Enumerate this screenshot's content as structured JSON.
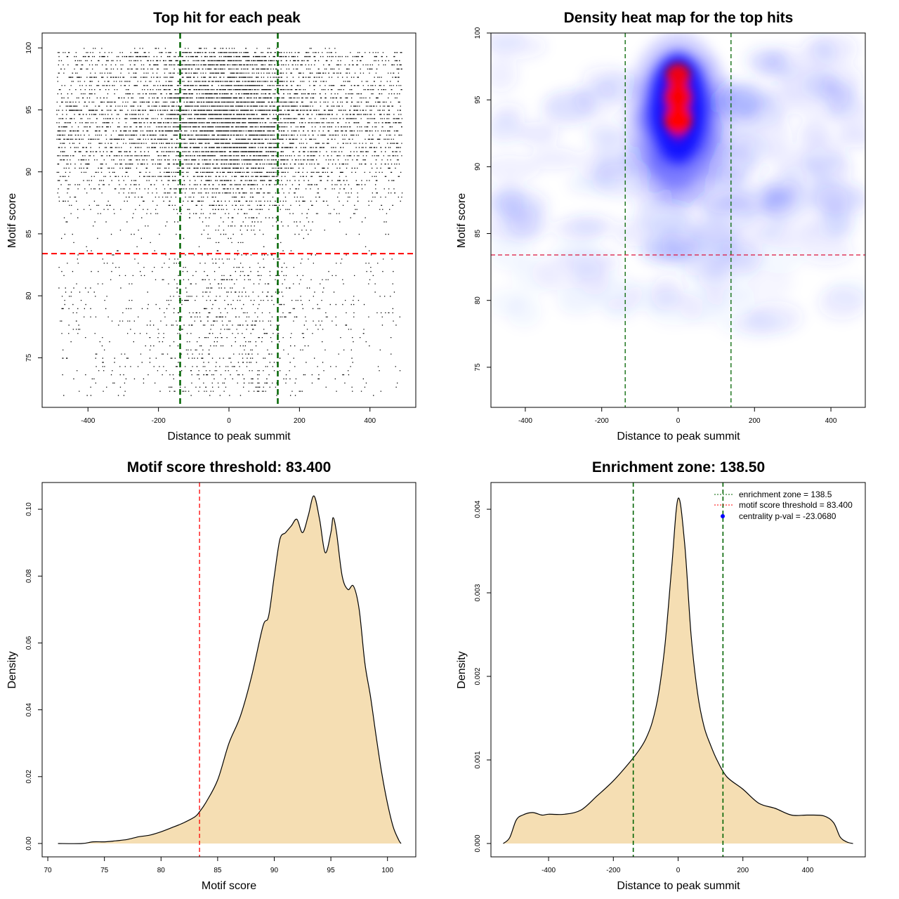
{
  "chart_data": [
    {
      "id": "scatter",
      "type": "scatter",
      "title": "Top hit for each peak",
      "xlabel": "Distance to peak summit",
      "ylabel": "Motif score",
      "xlim": [
        -530,
        530
      ],
      "ylim": [
        71,
        101.2
      ],
      "xticks": [
        -400,
        -200,
        0,
        200,
        400
      ],
      "yticks": [
        75,
        80,
        85,
        90,
        95,
        100
      ],
      "vlines": [
        -138.5,
        138.5
      ],
      "hline": 83.4,
      "point_cloud": {
        "x_range": [
          -490,
          490
        ],
        "y_range": [
          72,
          99.9
        ],
        "x_center": 0,
        "x_sd_central": 110,
        "y_mode": 94
      },
      "colors": {
        "points": "#000000",
        "vlines": "#006400",
        "hline": "#ff0000"
      }
    },
    {
      "id": "heatmap",
      "type": "heatmap",
      "title": "Density heat map for the top hits",
      "xlabel": "Distance to peak summit",
      "ylabel": "Motif score",
      "xlim": [
        -490,
        490
      ],
      "ylim": [
        72,
        100
      ],
      "xticks": [
        -400,
        -200,
        0,
        200,
        400
      ],
      "yticks": [
        75,
        80,
        85,
        90,
        95,
        100
      ],
      "vlines": [
        -138.5,
        138.5
      ],
      "hline": 83.4,
      "hotspots": [
        {
          "x": 0,
          "y": 93.5,
          "level": 1.0
        },
        {
          "x": 0,
          "y": 95.2,
          "level": 0.9
        },
        {
          "x": 0,
          "y": 96.8,
          "level": 0.75
        }
      ],
      "colors": {
        "low": "#ffffff",
        "mid": "#0000ff",
        "high": "#ff0000",
        "vlines": "#006400",
        "hline": "#dc143c"
      }
    },
    {
      "id": "score-density",
      "type": "area",
      "title": "Motif score threshold: 83.400",
      "xlabel": "Motif score",
      "ylabel": "Density",
      "xlim": [
        69.5,
        102.5
      ],
      "ylim": [
        -0.004,
        0.108
      ],
      "xticks": [
        70,
        75,
        80,
        85,
        90,
        95,
        100
      ],
      "xtick_labels": [
        "70",
        "75",
        "80",
        "85",
        "90",
        "95",
        "100"
      ],
      "yticks": [
        0,
        0.02,
        0.04,
        0.06,
        0.08,
        0.1
      ],
      "ytick_labels": [
        "0.00",
        "0.02",
        "0.04",
        "0.06",
        "0.08",
        "0.10"
      ],
      "vline": 83.4,
      "x": [
        70.9,
        73,
        74,
        75,
        76,
        77,
        78,
        79,
        80,
        81,
        82,
        83,
        83.4,
        84,
        85,
        86,
        87,
        88,
        89,
        89.5,
        90,
        90.5,
        91,
        91.5,
        92,
        92.5,
        93,
        93.5,
        94,
        94.5,
        95,
        95.2,
        95.5,
        96,
        96.5,
        97,
        97.5,
        98,
        98.5,
        99,
        99.5,
        100,
        100.5,
        101,
        101.2
      ],
      "y": [
        0,
        0,
        0.0005,
        0.0005,
        0.0008,
        0.0012,
        0.002,
        0.0025,
        0.0035,
        0.0048,
        0.0062,
        0.008,
        0.0095,
        0.0125,
        0.019,
        0.03,
        0.038,
        0.05,
        0.065,
        0.068,
        0.08,
        0.091,
        0.093,
        0.095,
        0.097,
        0.093,
        0.098,
        0.104,
        0.097,
        0.087,
        0.093,
        0.0975,
        0.093,
        0.08,
        0.076,
        0.077,
        0.07,
        0.054,
        0.044,
        0.032,
        0.021,
        0.012,
        0.005,
        0.001,
        0
      ],
      "colors": {
        "fill": "#f5deb3",
        "line": "#000000",
        "vline": "#ff0000"
      }
    },
    {
      "id": "distance-density",
      "type": "area",
      "title": "Enrichment zone: 138.50",
      "xlabel": "Distance to peak summit",
      "ylabel": "Density",
      "xlim": [
        -578,
        578
      ],
      "ylim": [
        -0.00016,
        0.00432
      ],
      "xticks": [
        -400,
        -200,
        0,
        200,
        400
      ],
      "yticks": [
        0,
        0.001,
        0.002,
        0.003,
        0.004
      ],
      "ytick_labels": [
        "0.000",
        "0.001",
        "0.002",
        "0.003",
        "0.004"
      ],
      "vlines": [
        -138.5,
        138.5
      ],
      "x": [
        -540,
        -520,
        -500,
        -480,
        -450,
        -420,
        -400,
        -350,
        -300,
        -250,
        -200,
        -150,
        -120,
        -100,
        -80,
        -60,
        -40,
        -20,
        0,
        20,
        40,
        60,
        80,
        100,
        120,
        150,
        200,
        250,
        300,
        350,
        400,
        450,
        480,
        500,
        520,
        540
      ],
      "y": [
        0,
        7e-05,
        0.00028,
        0.00034,
        0.00037,
        0.00034,
        0.00035,
        0.00035,
        0.0004,
        0.00057,
        0.00075,
        0.00097,
        0.00112,
        0.00125,
        0.00145,
        0.0018,
        0.0024,
        0.0033,
        0.00413,
        0.0036,
        0.0025,
        0.0018,
        0.0014,
        0.00118,
        0.001,
        0.0008,
        0.00065,
        0.00048,
        0.00042,
        0.00034,
        0.00034,
        0.00033,
        0.00025,
        8e-05,
        2e-05,
        0
      ],
      "legend": {
        "position": "top-right",
        "entries": [
          {
            "label": "enrichment zone = 138.5",
            "color": "#006400",
            "style": "dotted"
          },
          {
            "label": "motif score threshold = 83.400",
            "color": "#ff0000",
            "style": "dotted"
          },
          {
            "label": "centrality p-val = -23.0680",
            "color": "#0000ff",
            "style": "point"
          }
        ]
      },
      "colors": {
        "fill": "#f5deb3",
        "line": "#000000",
        "vlines": "#006400"
      }
    }
  ]
}
